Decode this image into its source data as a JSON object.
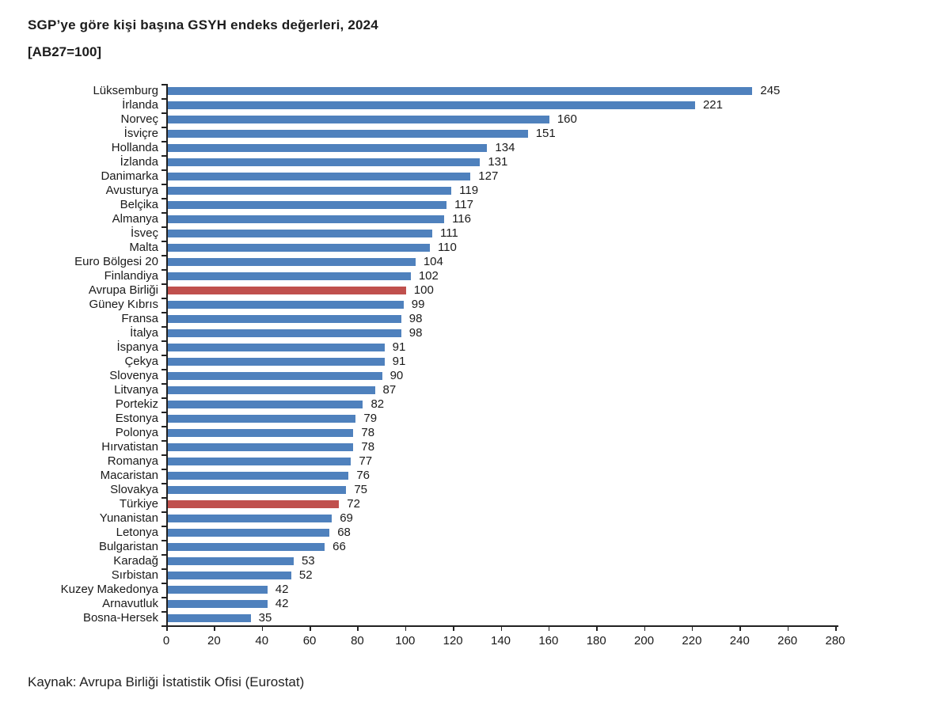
{
  "chart_data": {
    "type": "bar",
    "orientation": "horizontal",
    "title": "SGP’ye göre kişi başına GSYH endeks değerleri, 2024",
    "subtitle": "[AB27=100]",
    "source": "Kaynak: Avrupa Birliği İstatistik Ofisi (Eurostat)",
    "xlim": [
      0,
      280
    ],
    "x_ticks": [
      0,
      20,
      40,
      60,
      80,
      100,
      120,
      140,
      160,
      180,
      200,
      220,
      240,
      260,
      280
    ],
    "grid": false,
    "legend": "none",
    "bar_color": "#4F81BD",
    "highlight_color": "#C0504D",
    "highlighted_categories": [
      "Avrupa Birliği",
      "Türkiye"
    ],
    "categories": [
      "Lüksemburg",
      "İrlanda",
      "Norveç",
      "İsviçre",
      "Hollanda",
      "İzlanda",
      "Danimarka",
      "Avusturya",
      "Belçika",
      "Almanya",
      "İsveç",
      "Malta",
      "Euro Bölgesi 20",
      "Finlandiya",
      "Avrupa Birliği",
      "Güney Kıbrıs",
      "Fransa",
      "İtalya",
      "İspanya",
      "Çekya",
      "Slovenya",
      "Litvanya",
      "Portekiz",
      "Estonya",
      "Polonya",
      "Hırvatistan",
      "Romanya",
      "Macaristan",
      "Slovakya",
      "Türkiye",
      "Yunanistan",
      "Letonya",
      "Bulgaristan",
      "Karadağ",
      "Sırbistan",
      "Kuzey Makedonya",
      "Arnavutluk",
      "Bosna-Hersek"
    ],
    "values": [
      245,
      221,
      160,
      151,
      134,
      131,
      127,
      119,
      117,
      116,
      111,
      110,
      104,
      102,
      100,
      99,
      98,
      98,
      91,
      91,
      90,
      87,
      82,
      79,
      78,
      78,
      77,
      76,
      75,
      72,
      69,
      68,
      66,
      53,
      52,
      42,
      42,
      35
    ]
  }
}
